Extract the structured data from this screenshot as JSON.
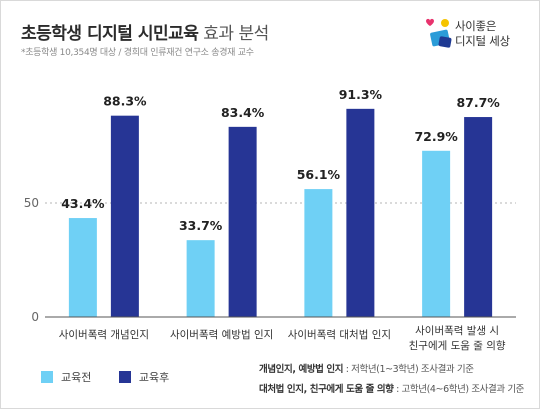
{
  "header": {
    "title_bold": "초등학생 디지털 시민교육",
    "title_light": "효과 분석",
    "subtitle": "*초등학생 10,354명 대상 / 경희대 인류재건 연구소 송경재 교수"
  },
  "brand": {
    "line1": "사이좋은",
    "line2": "디지털 세상",
    "colors": [
      "#e8336d",
      "#f5c400",
      "#2b9cd8",
      "#1f3a93"
    ]
  },
  "legend": {
    "items": [
      {
        "label": "교육전",
        "color": "#6fd0f5"
      },
      {
        "label": "교육후",
        "color": "#263595"
      }
    ]
  },
  "footnotes": [
    {
      "key": "개념인지, 예방법 인지",
      "value": " : 저학년(1~3학년) 조사결과 기준"
    },
    {
      "key": "대처법 인지, 친구에게 도움 줄 의향",
      "value": " : 고학년(4~6학년) 조사결과 기준"
    }
  ],
  "chart_data": {
    "type": "bar",
    "title": "초등학생 디지털 시민교육 효과 분석",
    "categories": [
      [
        "사이버폭력 개념인지"
      ],
      [
        "사이버폭력 예방법 인지"
      ],
      [
        "사이버폭력 대처법 인지"
      ],
      [
        "사이버폭력 발생 시",
        "친구에게 도움 줄 의향"
      ]
    ],
    "series": [
      {
        "name": "교육전",
        "values": [
          43.4,
          33.7,
          56.1,
          72.9
        ],
        "color": "#6fd0f5"
      },
      {
        "name": "교육후",
        "values": [
          88.3,
          83.4,
          91.3,
          87.7
        ],
        "color": "#263595"
      }
    ],
    "value_labels": [
      [
        "43.4%",
        "33.7%",
        "56.1%",
        "72.9%"
      ],
      [
        "88.3%",
        "83.4%",
        "91.3%",
        "87.7%"
      ]
    ],
    "yticks": [
      "0",
      "50"
    ],
    "ylim": [
      0,
      100
    ],
    "grid": "dotted line at 50",
    "legend_position": "bottom-left"
  }
}
